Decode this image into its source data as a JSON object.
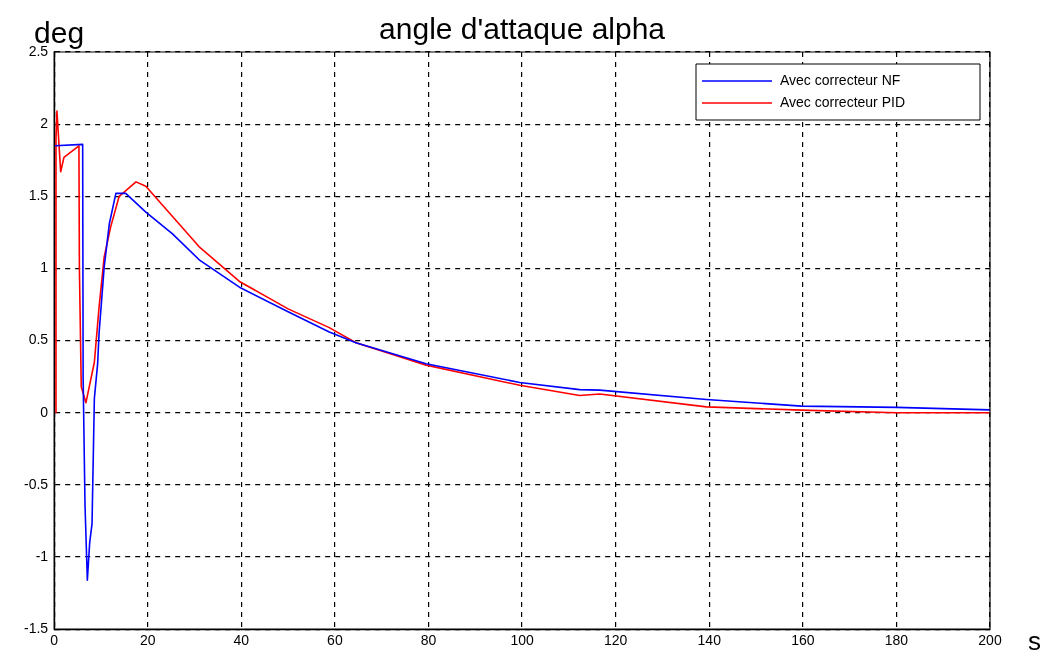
{
  "chart_data": {
    "type": "line",
    "title": "angle d'attaque alpha",
    "xlabel": "s",
    "ylabel": "deg",
    "xlim": [
      0,
      200
    ],
    "xticks": [
      0,
      20,
      40,
      60,
      80,
      100,
      120,
      140,
      160,
      180,
      200
    ],
    "ylim": [
      -1.5,
      2.5
    ],
    "yticks": [
      -1.5,
      -1,
      -0.5,
      0,
      0.5,
      1,
      1.5,
      2,
      2.5
    ],
    "grid": true,
    "legend": "top right",
    "marker": "none",
    "line_style": "solid",
    "series": [
      {
        "name": "Avec correcteur NF",
        "color": "#0000ff",
        "x": [
          0.2,
          6.1,
          6.2,
          6.6,
          7.1,
          7.6,
          8.1,
          8.6,
          9.3,
          9.6,
          10.7,
          11.8,
          13.2,
          15.3,
          19.6,
          25.3,
          31,
          39.6,
          50,
          58.8,
          64.5,
          79.5,
          99.5,
          112.3,
          116.6,
          139.4,
          159.7,
          180,
          200
        ],
        "values": [
          1.85,
          1.86,
          0.24,
          -0.64,
          -1.16,
          -0.9,
          -0.77,
          0.1,
          0.34,
          0.55,
          1.01,
          1.31,
          1.52,
          1.52,
          1.39,
          1.24,
          1.06,
          0.87,
          0.7,
          0.56,
          0.485,
          0.34,
          0.21,
          0.16,
          0.157,
          0.092,
          0.046,
          0.037,
          0.02
        ]
      },
      {
        "name": "Avec correcteur PID",
        "color": "#ff0000",
        "x": [
          0.3,
          0.4,
          0.6,
          1.4,
          2.1,
          5.3,
          5.4,
          5.8,
          6.8,
          8.6,
          9.6,
          10.7,
          12.1,
          13.9,
          17.5,
          19.6,
          25.3,
          31,
          39.6,
          50,
          58.8,
          64.5,
          79.5,
          99.5,
          112.3,
          116.6,
          139.4,
          159.7,
          180,
          200
        ],
        "values": [
          0,
          1.9,
          2.09,
          1.67,
          1.77,
          1.85,
          1,
          0.18,
          0.07,
          0.35,
          0.73,
          1.08,
          1.29,
          1.5,
          1.6,
          1.57,
          1.36,
          1.15,
          0.91,
          0.72,
          0.59,
          0.485,
          0.33,
          0.19,
          0.12,
          0.13,
          0.041,
          0.018,
          0,
          0
        ]
      }
    ]
  }
}
